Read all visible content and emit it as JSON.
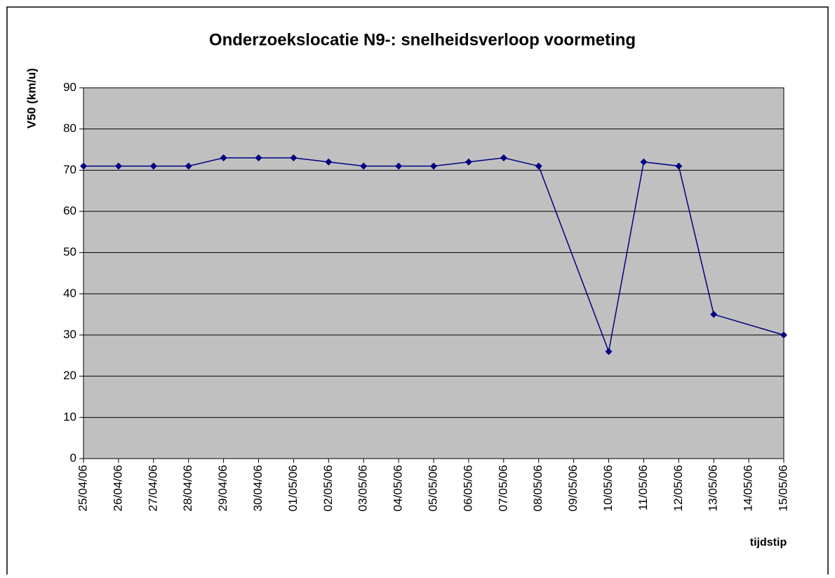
{
  "chart_data": {
    "type": "line",
    "title": "Onderzoekslocatie N9-: snelheidsverloop voormeting",
    "y_label": "V50 (km/u)",
    "x_label": "tijdstip",
    "categories": [
      "25/04/06",
      "26/04/06",
      "27/04/06",
      "28/04/06",
      "29/04/06",
      "30/04/06",
      "01/05/06",
      "02/05/06",
      "03/05/06",
      "04/05/06",
      "05/05/06",
      "06/05/06",
      "07/05/06",
      "08/05/06",
      "09/05/06",
      "10/05/06",
      "11/05/06",
      "12/05/06",
      "13/05/06",
      "14/05/06",
      "15/05/06"
    ],
    "series": [
      {
        "name": "V50",
        "color": "#000080",
        "values": [
          71,
          71,
          71,
          71,
          73,
          73,
          73,
          72,
          71,
          71,
          71,
          72,
          73,
          71,
          null,
          26,
          72,
          71,
          35,
          null,
          30
        ]
      }
    ],
    "span_gaps": true,
    "ylim": [
      0,
      90
    ],
    "yticks": [
      0,
      10,
      20,
      30,
      40,
      50,
      60,
      70,
      80,
      90
    ],
    "grid": true,
    "plot_background": "#c0c0c0"
  }
}
